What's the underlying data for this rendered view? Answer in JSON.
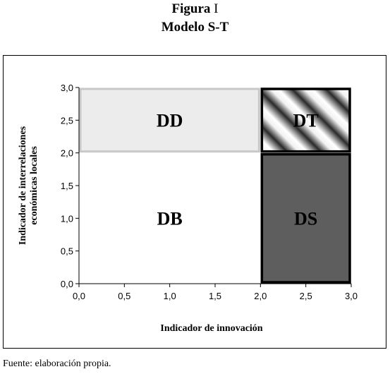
{
  "figure": {
    "label": "Figura",
    "number": "I",
    "title": "Modelo S-T"
  },
  "chart_data": {
    "type": "quadrant",
    "xlabel": "Indicador de innovación",
    "ylabel": "Indicador de interrelaciones económicas locales",
    "ylabel_lines": [
      "Indicador de interrelaciones",
      "económicas locales"
    ],
    "xlim": [
      0,
      3
    ],
    "ylim": [
      0,
      3
    ],
    "x_ticks": [
      "0,0",
      "0,5",
      "1,0",
      "1,5",
      "2,0",
      "2,5",
      "3,0"
    ],
    "y_ticks": [
      "0,0",
      "0,5",
      "1,0",
      "1,5",
      "2,0",
      "2,5",
      "3,0"
    ],
    "regions": [
      {
        "label": "DD",
        "x0": 0,
        "x1": 2,
        "y0": 2,
        "y1": 3,
        "fill": "#ececec",
        "stroke": "#c8c8c8"
      },
      {
        "label": "DT",
        "x0": 2,
        "x1": 3,
        "y0": 2,
        "y1": 3,
        "fill": "stripes",
        "stroke": "#000000"
      },
      {
        "label": "DB",
        "x0": 0,
        "x1": 2,
        "y0": 0,
        "y1": 2,
        "fill": "#ffffff",
        "stroke": "none"
      },
      {
        "label": "DS",
        "x0": 2,
        "x1": 3,
        "y0": 0,
        "y1": 2,
        "fill": "#5e5e5e",
        "stroke": "#000000"
      }
    ],
    "grid": false,
    "legend": "none"
  },
  "source_note": "Fuente: elaboración propia."
}
